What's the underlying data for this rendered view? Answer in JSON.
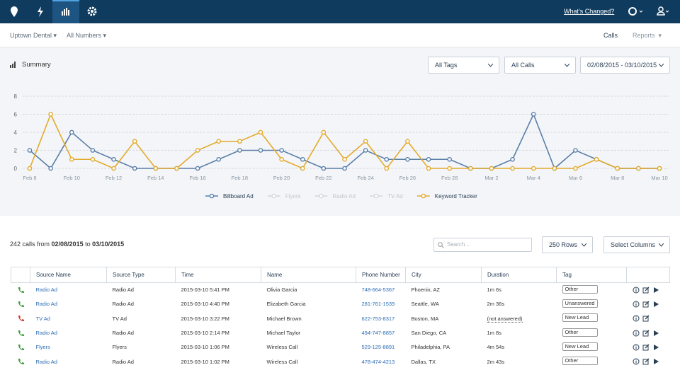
{
  "nav": {
    "whats_changed": "What's Changed?"
  },
  "subnav": {
    "account": "Uptown Dental",
    "numbers": "All Numbers",
    "calls": "Calls",
    "reports": "Reports"
  },
  "summary": {
    "title": "Summary",
    "tags": "All Tags",
    "calls": "All Calls",
    "range": "02/08/2015 - 03/10/2015"
  },
  "chart_data": {
    "type": "line",
    "categories": [
      "Feb 8",
      null,
      "Feb 10",
      null,
      "Feb 12",
      null,
      "Feb 14",
      null,
      "Feb 16",
      null,
      "Feb 18",
      null,
      "Feb 20",
      null,
      "Feb 22",
      null,
      "Feb 24",
      null,
      "Feb 26",
      null,
      "Feb 28",
      null,
      "Mar 2",
      null,
      "Mar 4",
      null,
      "Mar 6",
      null,
      "Mar 8",
      null,
      "Mar 10"
    ],
    "series": [
      {
        "name": "Billboard Ad",
        "color": "#5b7fa8",
        "visible": true,
        "values": [
          2,
          0,
          4,
          2,
          1,
          0,
          0,
          0,
          0,
          1,
          2,
          2,
          2,
          1,
          0,
          0,
          2,
          1,
          1,
          1,
          1,
          0,
          0,
          1,
          6,
          0,
          2,
          1,
          0,
          0,
          0
        ]
      },
      {
        "name": "Flyers",
        "color": "#d3d6da",
        "visible": false
      },
      {
        "name": "Radio Ad",
        "color": "#d3d6da",
        "visible": false
      },
      {
        "name": "TV Ad",
        "color": "#d3d6da",
        "visible": false
      },
      {
        "name": "Keyword Tracker",
        "color": "#e3aa2b",
        "visible": true,
        "values": [
          0,
          6,
          1,
          1,
          0,
          3,
          0,
          0,
          2,
          3,
          3,
          4,
          1,
          0,
          4,
          1,
          3,
          0,
          3,
          0,
          0,
          0,
          0,
          0,
          0,
          0,
          0,
          1,
          0,
          0,
          0
        ]
      }
    ],
    "ylim": [
      0,
      8
    ],
    "yticks": [
      0,
      2,
      4,
      6,
      8
    ],
    "grid": true
  },
  "calls_info": {
    "count_text": "242 calls from ",
    "from": "02/08/2015",
    "to_text": " to ",
    "to": "03/10/2015",
    "search": "Search...",
    "rows_select": "250 Rows",
    "columns_select": "Select Columns"
  },
  "table": {
    "columns": [
      "Source Name",
      "Source Type",
      "Time",
      "Name",
      "Phone Number",
      "City",
      "Duration",
      "Tag"
    ],
    "rows": [
      {
        "answered": true,
        "recording": true,
        "cells": [
          "Radio Ad",
          "Radio Ad",
          "2015-03-10 5:41 PM",
          "Olivia Garcia",
          "748-664-5367",
          "Phoenix, AZ",
          "1m 6s",
          "Other"
        ]
      },
      {
        "answered": true,
        "recording": true,
        "cells": [
          "Radio Ad",
          "Radio Ad",
          "2015-03-10 4:40 PM",
          "Elizabeth Garcia",
          "281-761-1539",
          "Seattle, WA",
          "2m 36s",
          "Unanswered"
        ]
      },
      {
        "answered": false,
        "recording": false,
        "cells": [
          "TV Ad",
          "TV Ad",
          "2015-03-10 3:22 PM",
          "Michael Brown",
          "622-753-8317",
          "Boston, MA",
          "(not answered)",
          "New Lead"
        ]
      },
      {
        "answered": true,
        "recording": true,
        "cells": [
          "Radio Ad",
          "Radio Ad",
          "2015-03-10 2:14 PM",
          "Michael Taylor",
          "494-747-8857",
          "San Diego, CA",
          "1m 8s",
          "Other"
        ]
      },
      {
        "answered": true,
        "recording": true,
        "cells": [
          "Flyers",
          "Flyers",
          "2015-03-10 1:06 PM",
          "Wireless Call",
          "529-125-8891",
          "Philadelphia, PA",
          "4m 54s",
          "New Lead"
        ]
      },
      {
        "answered": true,
        "recording": true,
        "cells": [
          "Radio Ad",
          "Radio Ad",
          "2015-03-10 1:02 PM",
          "Wireless Call",
          "478-474-4213",
          "Dallas, TX",
          "2m 43s",
          "Other"
        ]
      }
    ]
  }
}
